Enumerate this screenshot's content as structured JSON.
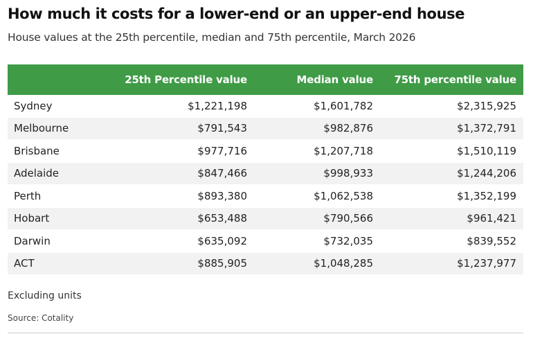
{
  "header": {
    "title": "How much it costs for a lower-end or an upper-end house",
    "subtitle": "House values at the 25th percentile, median and 75th percentile, March 2026"
  },
  "table": {
    "columns": [
      "",
      "25th Percentile value",
      "Median value",
      "75th percentile value"
    ],
    "rows": [
      {
        "city": "Sydney",
        "p25": "$1,221,198",
        "median": "$1,601,782",
        "p75": "$2,315,925"
      },
      {
        "city": "Melbourne",
        "p25": "$791,543",
        "median": "$982,876",
        "p75": "$1,372,791"
      },
      {
        "city": "Brisbane",
        "p25": "$977,716",
        "median": "$1,207,718",
        "p75": "$1,510,119"
      },
      {
        "city": "Adelaide",
        "p25": "$847,466",
        "median": "$998,933",
        "p75": "$1,244,206"
      },
      {
        "city": "Perth",
        "p25": "$893,380",
        "median": "$1,062,538",
        "p75": "$1,352,199"
      },
      {
        "city": "Hobart",
        "p25": "$653,488",
        "median": "$790,566",
        "p75": "$961,421"
      },
      {
        "city": "Darwin",
        "p25": "$635,092",
        "median": "$732,035",
        "p75": "$839,552"
      },
      {
        "city": "ACT",
        "p25": "$885,905",
        "median": "$1,048,285",
        "p75": "$1,237,977"
      }
    ]
  },
  "footer": {
    "note": "Excluding units",
    "source": "Source: Cotality"
  },
  "colors": {
    "header_bg": "#3f9b46",
    "header_text": "#ffffff",
    "stripe": "#f2f2f2"
  },
  "chart_data": {
    "type": "table",
    "title": "How much it costs for a lower-end or an upper-end house",
    "subtitle": "House values at the 25th percentile, median and 75th percentile, March 2026",
    "categories": [
      "Sydney",
      "Melbourne",
      "Brisbane",
      "Adelaide",
      "Perth",
      "Hobart",
      "Darwin",
      "ACT"
    ],
    "series": [
      {
        "name": "25th Percentile value",
        "values": [
          1221198,
          791543,
          977716,
          847466,
          893380,
          653488,
          635092,
          885905
        ]
      },
      {
        "name": "Median value",
        "values": [
          1601782,
          982876,
          1207718,
          998933,
          1062538,
          790566,
          732035,
          1048285
        ]
      },
      {
        "name": "75th percentile value",
        "values": [
          2315925,
          1372791,
          1510119,
          1244206,
          1352199,
          961421,
          839552,
          1237977
        ]
      }
    ]
  }
}
